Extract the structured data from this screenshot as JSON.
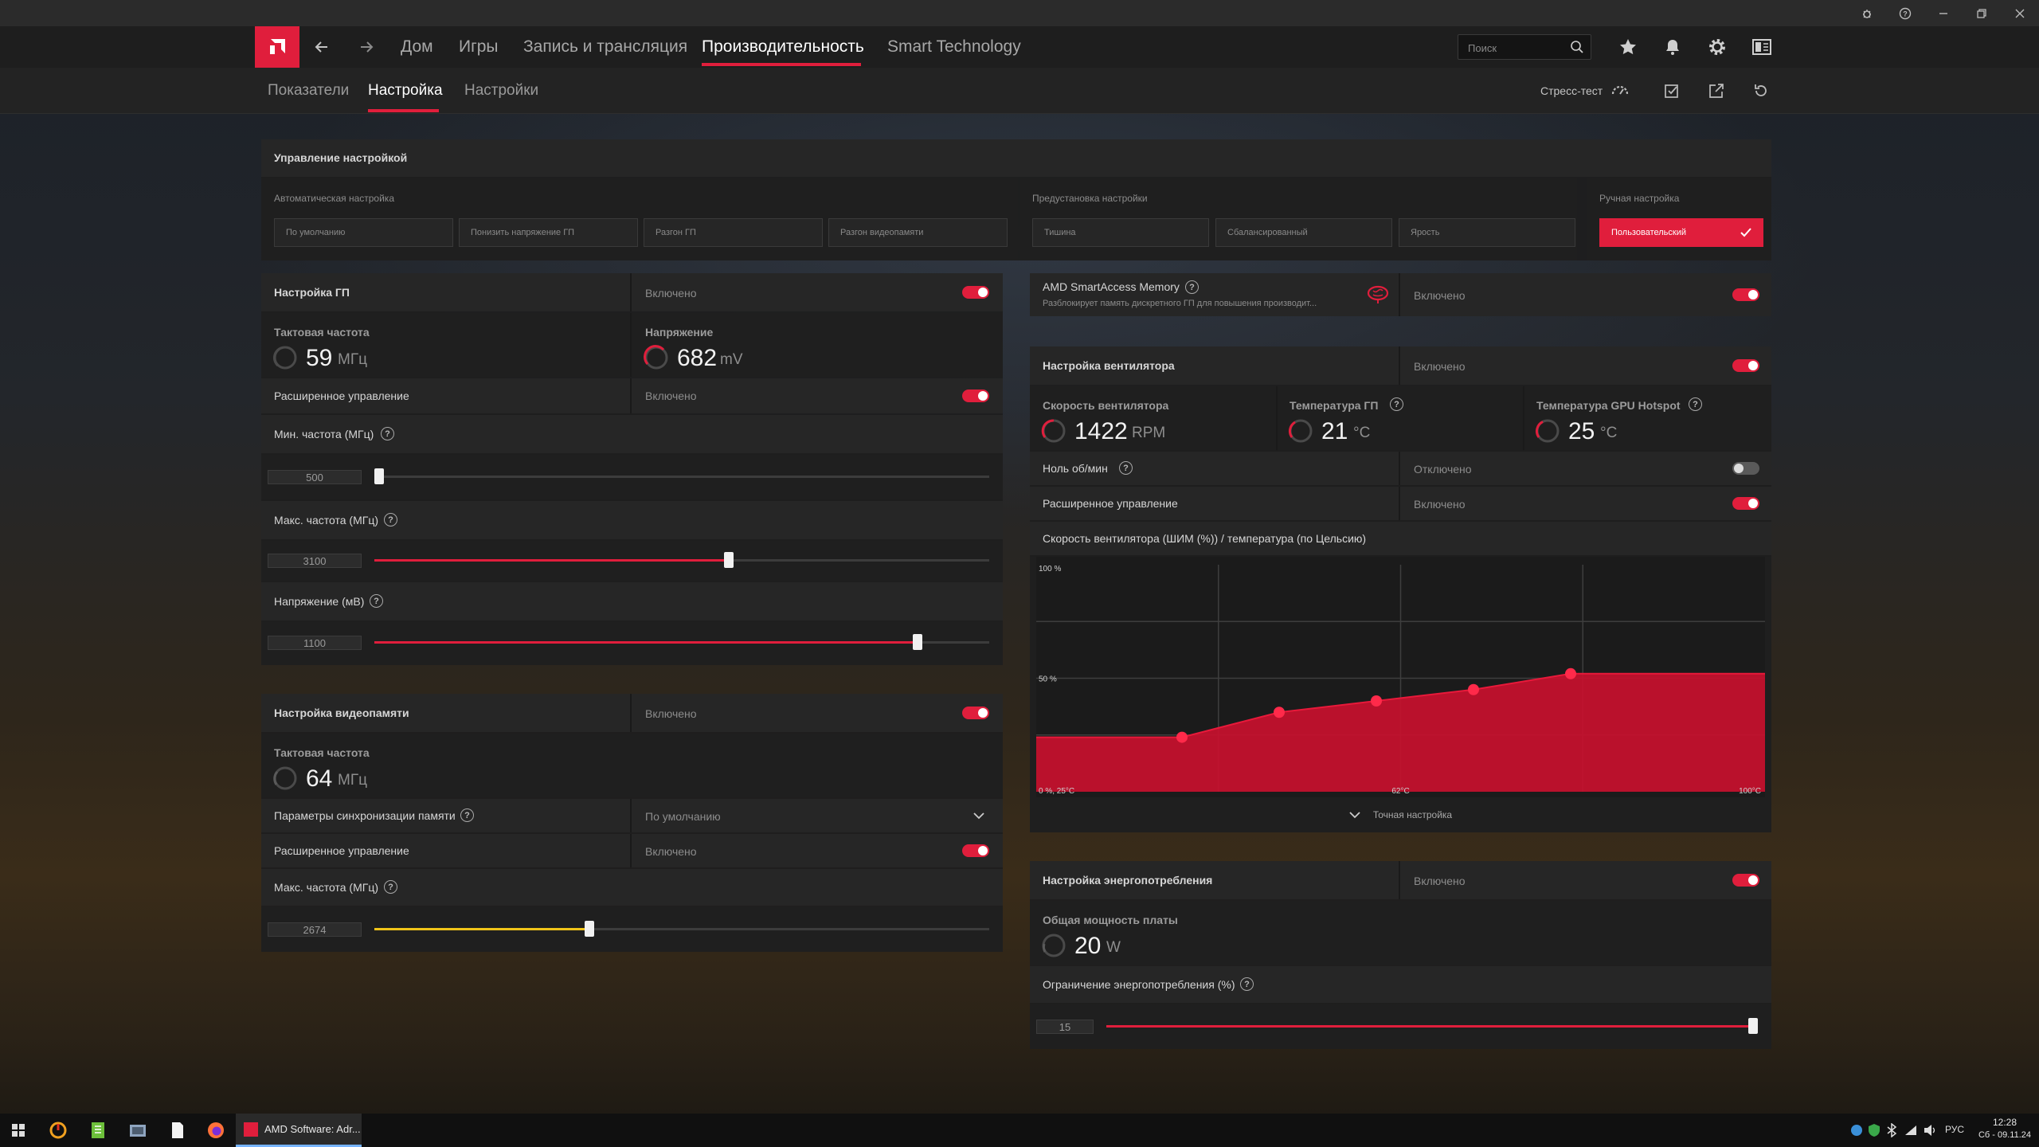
{
  "colors": {
    "accent": "#e01e3c",
    "memory_slider": "#f0c419",
    "panel": "#1e1e1e"
  },
  "search": {
    "placeholder": "Поиск"
  },
  "nav": {
    "items": [
      "Дом",
      "Игры",
      "Запись и трансляция",
      "Производительность",
      "Smart Technology"
    ],
    "active": "Производительность"
  },
  "subnav": {
    "items": [
      "Показатели",
      "Настройка",
      "Настройки"
    ],
    "active": "Настройка",
    "stress_test_label": "Стресс-тест"
  },
  "tuning_control": {
    "title": "Управление настройкой",
    "auto": {
      "label": "Автоматическая настройка",
      "options": [
        "По умолчанию",
        "Понизить напряжение ГП",
        "Разгон ГП",
        "Разгон видеопамяти"
      ]
    },
    "preset": {
      "label": "Предустановка настройки",
      "options": [
        "Тишина",
        "Сбалансированный",
        "Ярость"
      ]
    },
    "manual": {
      "label": "Ручная настройка",
      "selected": "Пользовательский"
    }
  },
  "gpu_tuning": {
    "title": "Настройка ГП",
    "status": "Включено",
    "enabled": true,
    "clock": {
      "title": "Тактовая частота",
      "value": "59",
      "unit": "МГц"
    },
    "voltage": {
      "title": "Напряжение",
      "value": "682",
      "unit": "mV"
    },
    "advanced": {
      "label": "Расширенное управление",
      "status": "Включено",
      "enabled": true
    },
    "min_freq": {
      "label": "Мин. частота (МГц)",
      "value": "500",
      "fraction": 0.0
    },
    "max_freq": {
      "label": "Макс. частота (МГц)",
      "value": "3100",
      "fraction": 0.577
    },
    "voltage_mv": {
      "label": "Напряжение (мВ)",
      "value": "1100",
      "fraction": 0.883
    }
  },
  "vram_tuning": {
    "title": "Настройка видеопамяти",
    "status": "Включено",
    "enabled": true,
    "clock": {
      "title": "Тактовая частота",
      "value": "64",
      "unit": "МГц"
    },
    "timing": {
      "label": "Параметры синхронизации памяти",
      "value": "По умолчанию"
    },
    "advanced": {
      "label": "Расширенное управление",
      "status": "Включено",
      "enabled": true
    },
    "max_freq": {
      "label": "Макс. частота (МГц)",
      "value": "2674",
      "fraction": 0.35
    }
  },
  "sam": {
    "title": "AMD SmartAccess Memory",
    "description": "Разблокирует память дискретного ГП для повышения производит...",
    "status": "Включено",
    "enabled": true
  },
  "fan_tuning": {
    "title": "Настройка вентилятора",
    "status": "Включено",
    "enabled": true,
    "fan_speed": {
      "title": "Скорость вентилятора",
      "value": "1422",
      "unit": "RPM"
    },
    "gpu_temp": {
      "title": "Температура ГП",
      "value": "21",
      "unit": "°C"
    },
    "hotspot_temp": {
      "title": "Температура GPU Hotspot",
      "value": "25",
      "unit": "°C"
    },
    "zero_rpm": {
      "label": "Ноль об/мин",
      "status": "Отключено",
      "enabled": false
    },
    "advanced": {
      "label": "Расширенное управление",
      "status": "Включено",
      "enabled": true
    },
    "curve_title": "Скорость вентилятора (ШИМ (%)) / температура (по Цельсию)",
    "curve_labels": {
      "y_top": "100 %",
      "y_mid": "50 %",
      "x_min": "0 %, 25°C",
      "x_mid": "62°C",
      "x_max": "100°C"
    },
    "fine_tune_label": "Точная настройка"
  },
  "chart_data": {
    "type": "area",
    "title": "Скорость вентилятора (ШИМ (%)) / температура (по Цельсию)",
    "xlabel": "°C",
    "ylabel": "%",
    "xlim": [
      25,
      100
    ],
    "ylim": [
      0,
      100
    ],
    "series": [
      {
        "x": [
          25,
          40,
          50,
          60,
          70,
          80,
          100
        ],
        "y": [
          24,
          24,
          35,
          40,
          45,
          52,
          52
        ]
      }
    ],
    "control_points": [
      [
        40,
        24
      ],
      [
        50,
        35
      ],
      [
        60,
        40
      ],
      [
        70,
        45
      ],
      [
        80,
        52
      ]
    ]
  },
  "power_tuning": {
    "title": "Настройка энергопотребления",
    "status": "Включено",
    "enabled": true,
    "board_power": {
      "title": "Общая мощность платы",
      "value": "20",
      "unit": "W"
    },
    "power_limit": {
      "label": "Ограничение энергопотребления (%)",
      "value": "15",
      "fraction": 1.0
    }
  },
  "taskbar": {
    "app_label": "AMD Software: Adr...",
    "lang": "РУС",
    "time": "12:28",
    "date": "Сб - 09.11.24"
  }
}
